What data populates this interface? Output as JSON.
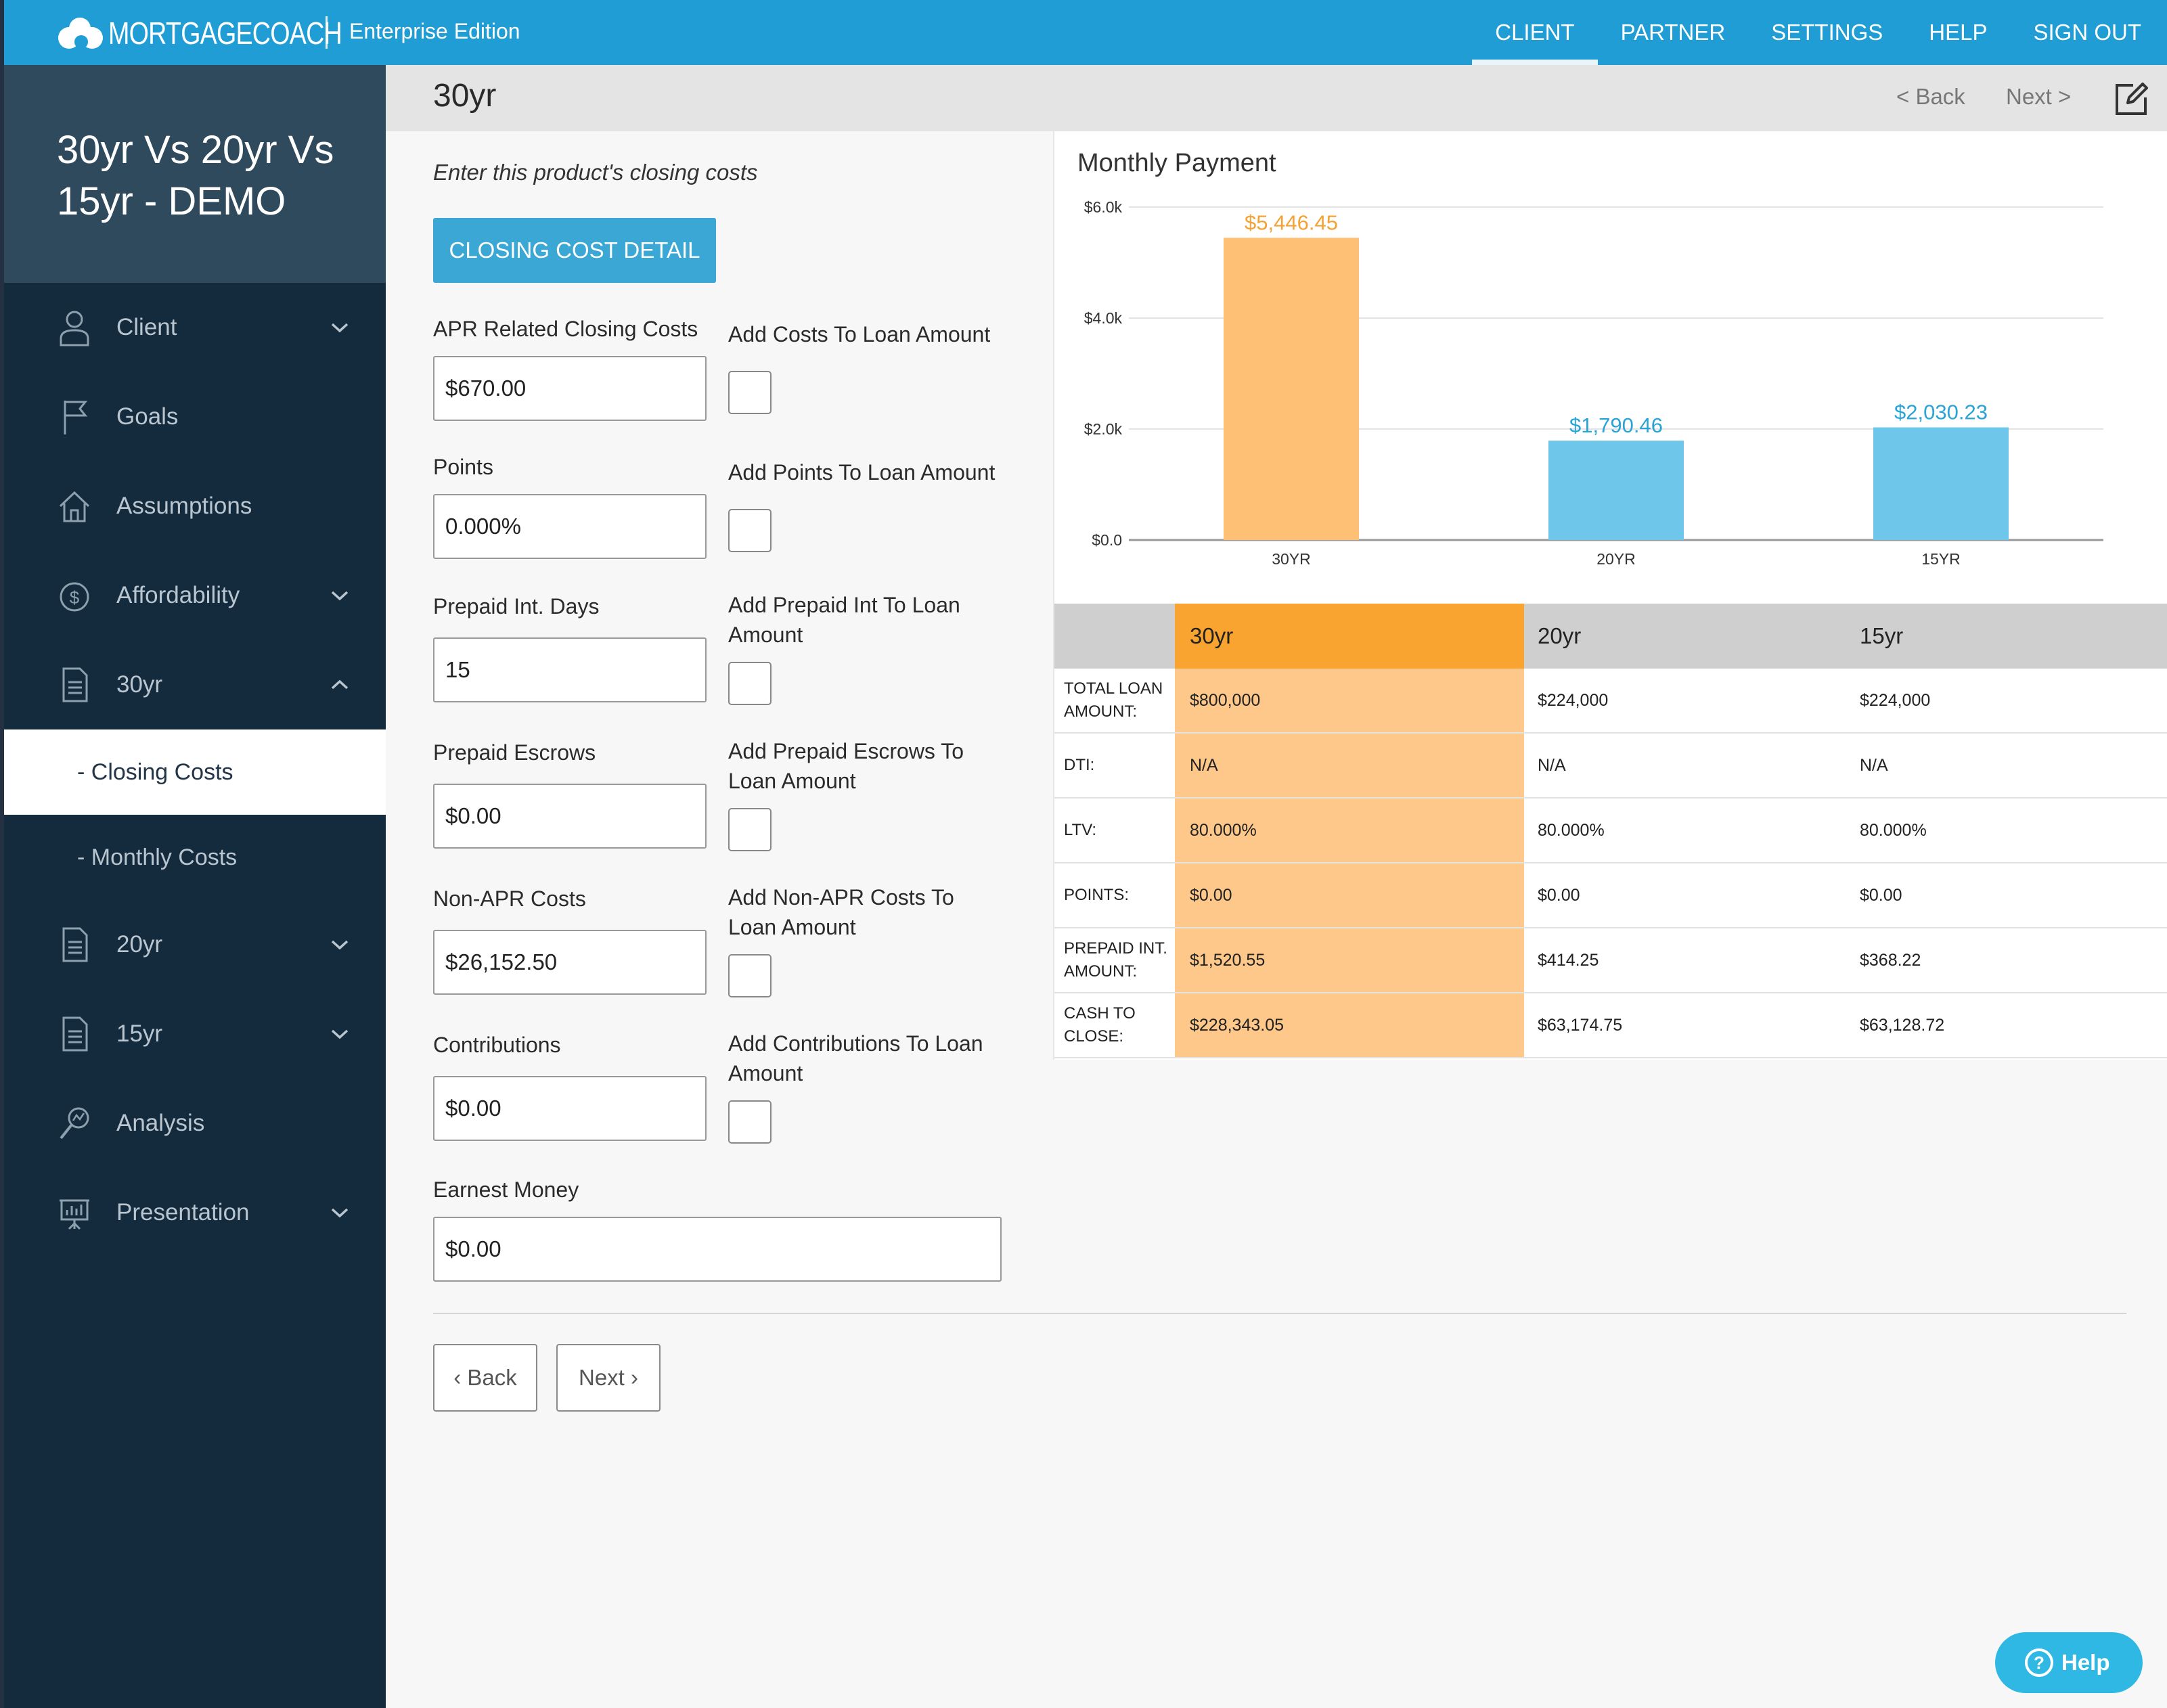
{
  "brand": {
    "name": "MORTGAGECOACH",
    "edition": "Enterprise Edition",
    "primary_color": "#1f9dd4",
    "sidebar_color": "#142a3d",
    "accent_orange": "#f9a330",
    "accent_blue": "#6ec6ea"
  },
  "topnav": {
    "items": [
      {
        "label": "CLIENT",
        "active": true
      },
      {
        "label": "PARTNER",
        "active": false
      },
      {
        "label": "SETTINGS",
        "active": false
      },
      {
        "label": "HELP",
        "active": false
      },
      {
        "label": "SIGN OUT",
        "active": false
      }
    ]
  },
  "sidebar": {
    "title_line1": "30yr Vs 20yr Vs",
    "title_line2": "15yr - DEMO",
    "items": [
      {
        "label": "Client",
        "icon": "user-icon",
        "expandable": true
      },
      {
        "label": "Goals",
        "icon": "flag-icon",
        "expandable": false
      },
      {
        "label": "Assumptions",
        "icon": "house-icon",
        "expandable": false
      },
      {
        "label": "Affordability",
        "icon": "money-bag-icon",
        "expandable": true
      },
      {
        "label": "30yr",
        "icon": "document-icon",
        "expandable": true,
        "expanded": true
      },
      {
        "label": "- Closing Costs",
        "sub": true,
        "active": true
      },
      {
        "label": "- Monthly Costs",
        "sub": true
      },
      {
        "label": "20yr",
        "icon": "document-icon",
        "expandable": true
      },
      {
        "label": "15yr",
        "icon": "document-icon",
        "expandable": true
      },
      {
        "label": "Analysis",
        "icon": "analysis-icon",
        "expandable": false
      },
      {
        "label": "Presentation",
        "icon": "presentation-icon",
        "expandable": true
      }
    ]
  },
  "titlebar": {
    "title": "30yr",
    "back_label": "< Back",
    "next_label": "Next >"
  },
  "form": {
    "intro": "Enter this product's closing costs",
    "detail_button": "CLOSING COST DETAIL",
    "apr_label": "APR Related Closing Costs",
    "apr_value": "$670.00",
    "apr_check_label": "Add Costs To Loan Amount",
    "points_label": "Points",
    "points_value": "0.000%",
    "points_check_label": "Add Points To Loan Amount",
    "prepaid_days_label": "Prepaid Int. Days",
    "prepaid_days_value": "15",
    "prepaid_check_line1": "Add Prepaid Int To Loan",
    "prepaid_check_line2": "Amount",
    "escrows_label": "Prepaid Escrows",
    "escrows_value": "$0.00",
    "escrows_check_line1": "Add Prepaid Escrows To",
    "escrows_check_line2": "Loan Amount",
    "nonapr_label": "Non-APR Costs",
    "nonapr_value": "$26,152.50",
    "nonapr_check_line1": "Add Non-APR Costs To",
    "nonapr_check_line2": "Loan Amount",
    "contrib_label": "Contributions",
    "contrib_value": "$0.00",
    "contrib_check_line1": "Add Contributions To Loan",
    "contrib_check_line2": "Amount",
    "earnest_label": "Earnest Money",
    "earnest_value": "$0.00",
    "back_button": "‹ Back",
    "next_button": "Next ›"
  },
  "chart_data": {
    "type": "bar",
    "title": "Monthly Payment",
    "categories": [
      "30YR",
      "20YR",
      "15YR"
    ],
    "values": [
      5446.45,
      1790.46,
      2030.23
    ],
    "value_labels": [
      "$5,446.45",
      "$1,790.46",
      "$2,030.23"
    ],
    "bar_colors": [
      "#fdc074",
      "#6ec6ea",
      "#6ec6ea"
    ],
    "label_colors": [
      "#f5a235",
      "#2aa4d6",
      "#2aa4d6"
    ],
    "yticks": [
      "$0.0",
      "$2.0k",
      "$4.0k",
      "$6.0k"
    ],
    "ytick_values": [
      0,
      2000,
      4000,
      6000
    ],
    "ylim": [
      0,
      6000
    ],
    "grid": true,
    "xlabel": "",
    "ylabel": ""
  },
  "table": {
    "headers": [
      "",
      "30yr",
      "20yr",
      "15yr"
    ],
    "rows": [
      {
        "label": "TOTAL LOAN AMOUNT:",
        "values": [
          "$800,000",
          "$224,000",
          "$224,000"
        ]
      },
      {
        "label": "DTI:",
        "values": [
          "N/A",
          "N/A",
          "N/A"
        ]
      },
      {
        "label": "LTV:",
        "values": [
          "80.000%",
          "80.000%",
          "80.000%"
        ]
      },
      {
        "label": "POINTS:",
        "values": [
          "$0.00",
          "$0.00",
          "$0.00"
        ]
      },
      {
        "label": "PREPAID INT. AMOUNT:",
        "values": [
          "$1,520.55",
          "$414.25",
          "$368.22"
        ]
      },
      {
        "label": "CASH TO CLOSE:",
        "values": [
          "$228,343.05",
          "$63,174.75",
          "$63,128.72"
        ]
      }
    ]
  },
  "help_widget": {
    "label": "Help",
    "icon": "question-icon"
  }
}
